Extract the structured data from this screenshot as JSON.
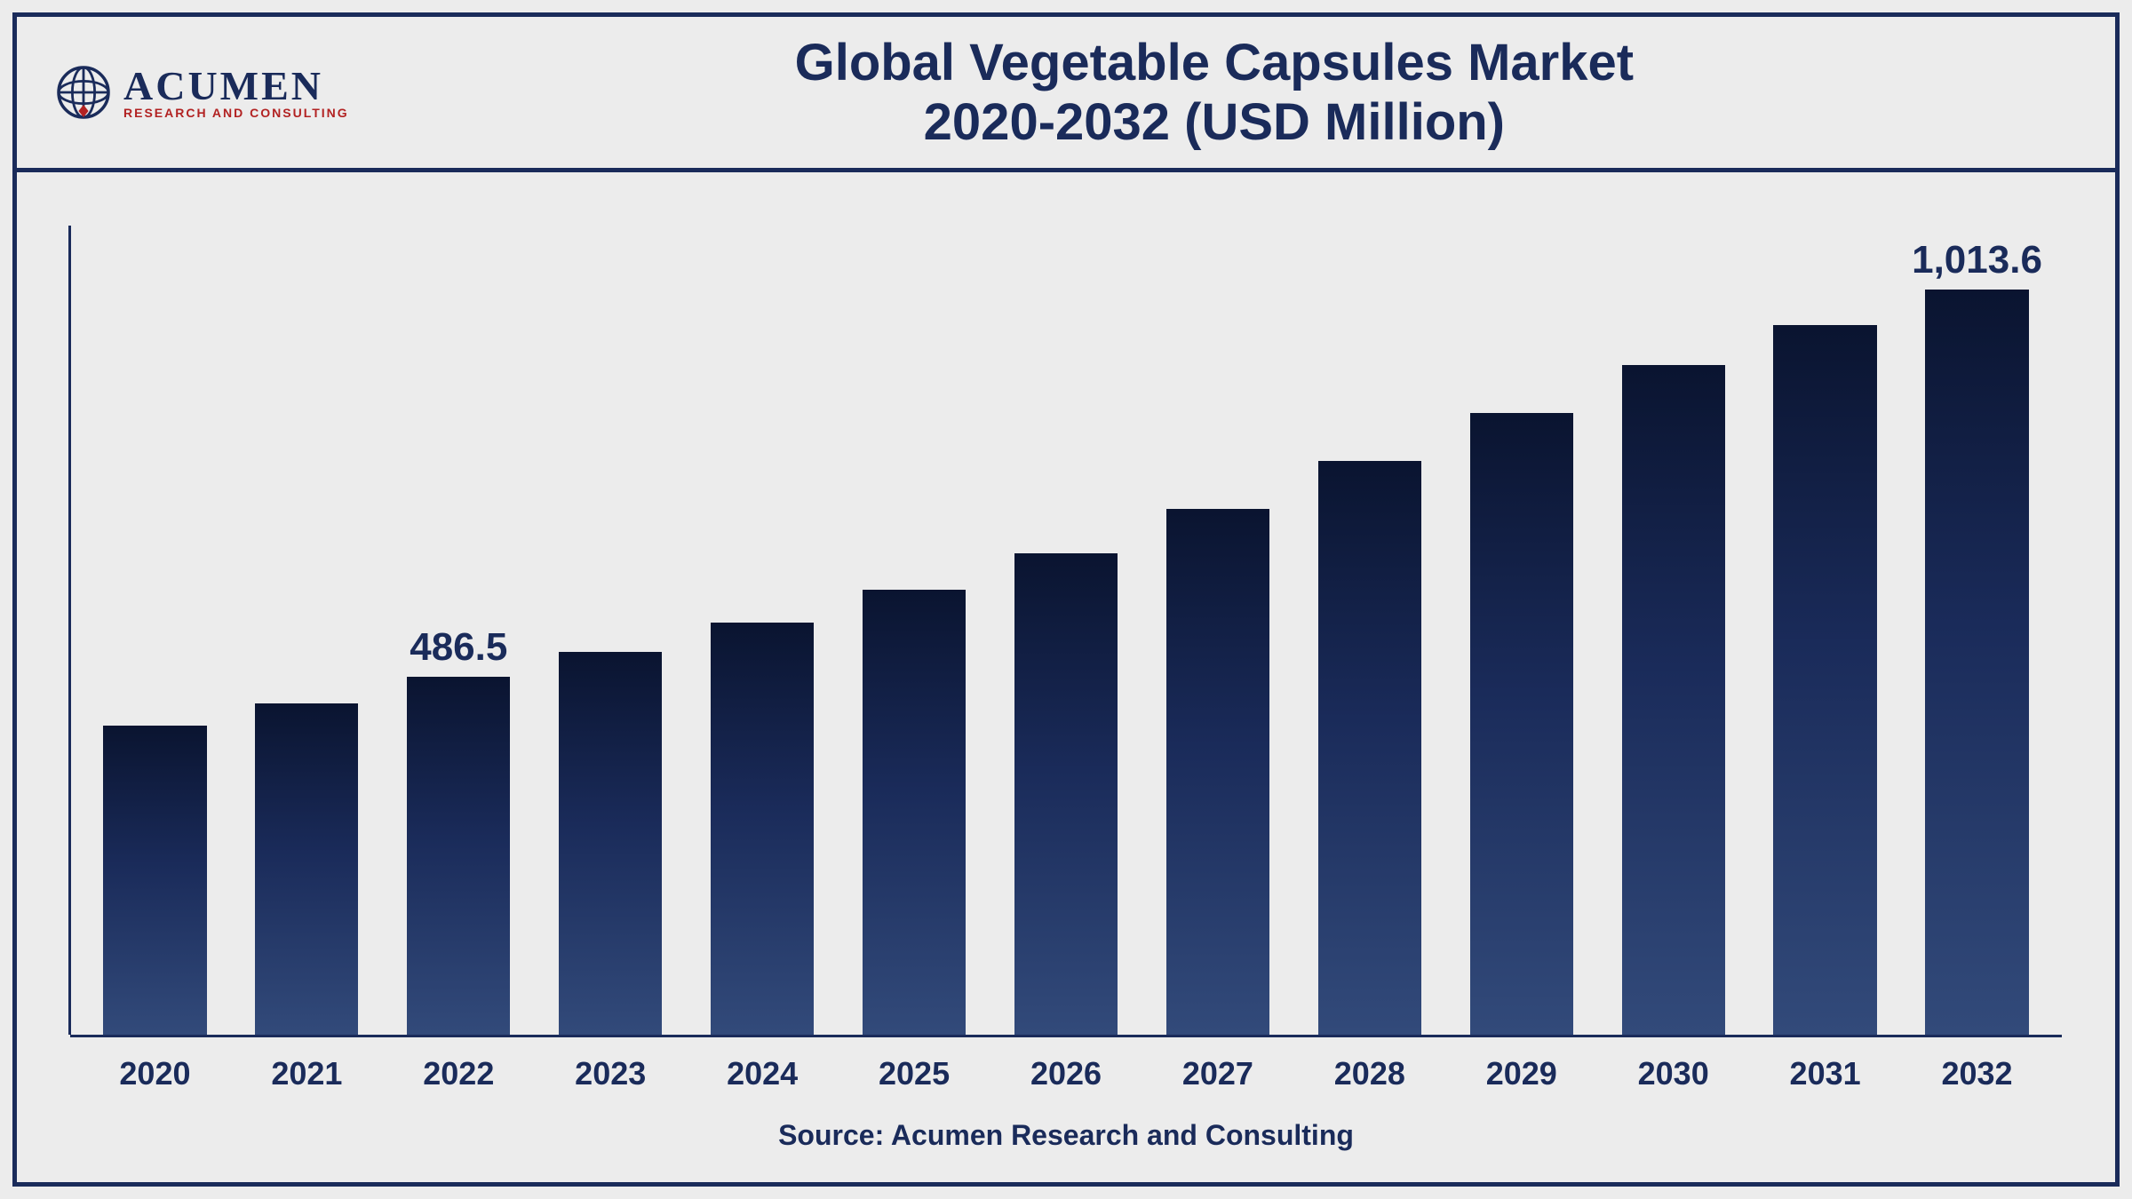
{
  "logo": {
    "main": "ACUMEN",
    "sub": "RESEARCH AND CONSULTING"
  },
  "title": {
    "line1": "Global Vegetable Capsules Market",
    "line2": "2020-2032 (USD Million)"
  },
  "source": "Source: Acumen Research and Consulting",
  "chart": {
    "type": "bar",
    "categories": [
      "2020",
      "2021",
      "2022",
      "2023",
      "2024",
      "2025",
      "2026",
      "2027",
      "2028",
      "2029",
      "2030",
      "2031",
      "2032"
    ],
    "values": [
      420,
      450,
      486.5,
      520,
      560,
      605,
      655,
      715,
      780,
      845,
      910,
      965,
      1013.6
    ],
    "value_labels": [
      "",
      "",
      "486.5",
      "",
      "",
      "",
      "",
      "",
      "",
      "",
      "",
      "",
      "1,013.6"
    ],
    "ylim": [
      0,
      1100
    ],
    "bar_gradient_top": "#0a1430",
    "bar_gradient_mid": "#1a2b5a",
    "bar_gradient_bot": "#324a7a",
    "axis_color": "#1a2b5a",
    "background_color": "#ececec",
    "outer_border_color": "#1a2b5a",
    "title_color": "#1a2b5a",
    "title_fontsize": 58,
    "label_fontsize": 44,
    "xtick_fontsize": 36,
    "source_fontsize": 32,
    "bar_width_pct": 68,
    "logo_globe_stroke": "#1a2b5a",
    "logo_accent": "#b22222"
  }
}
